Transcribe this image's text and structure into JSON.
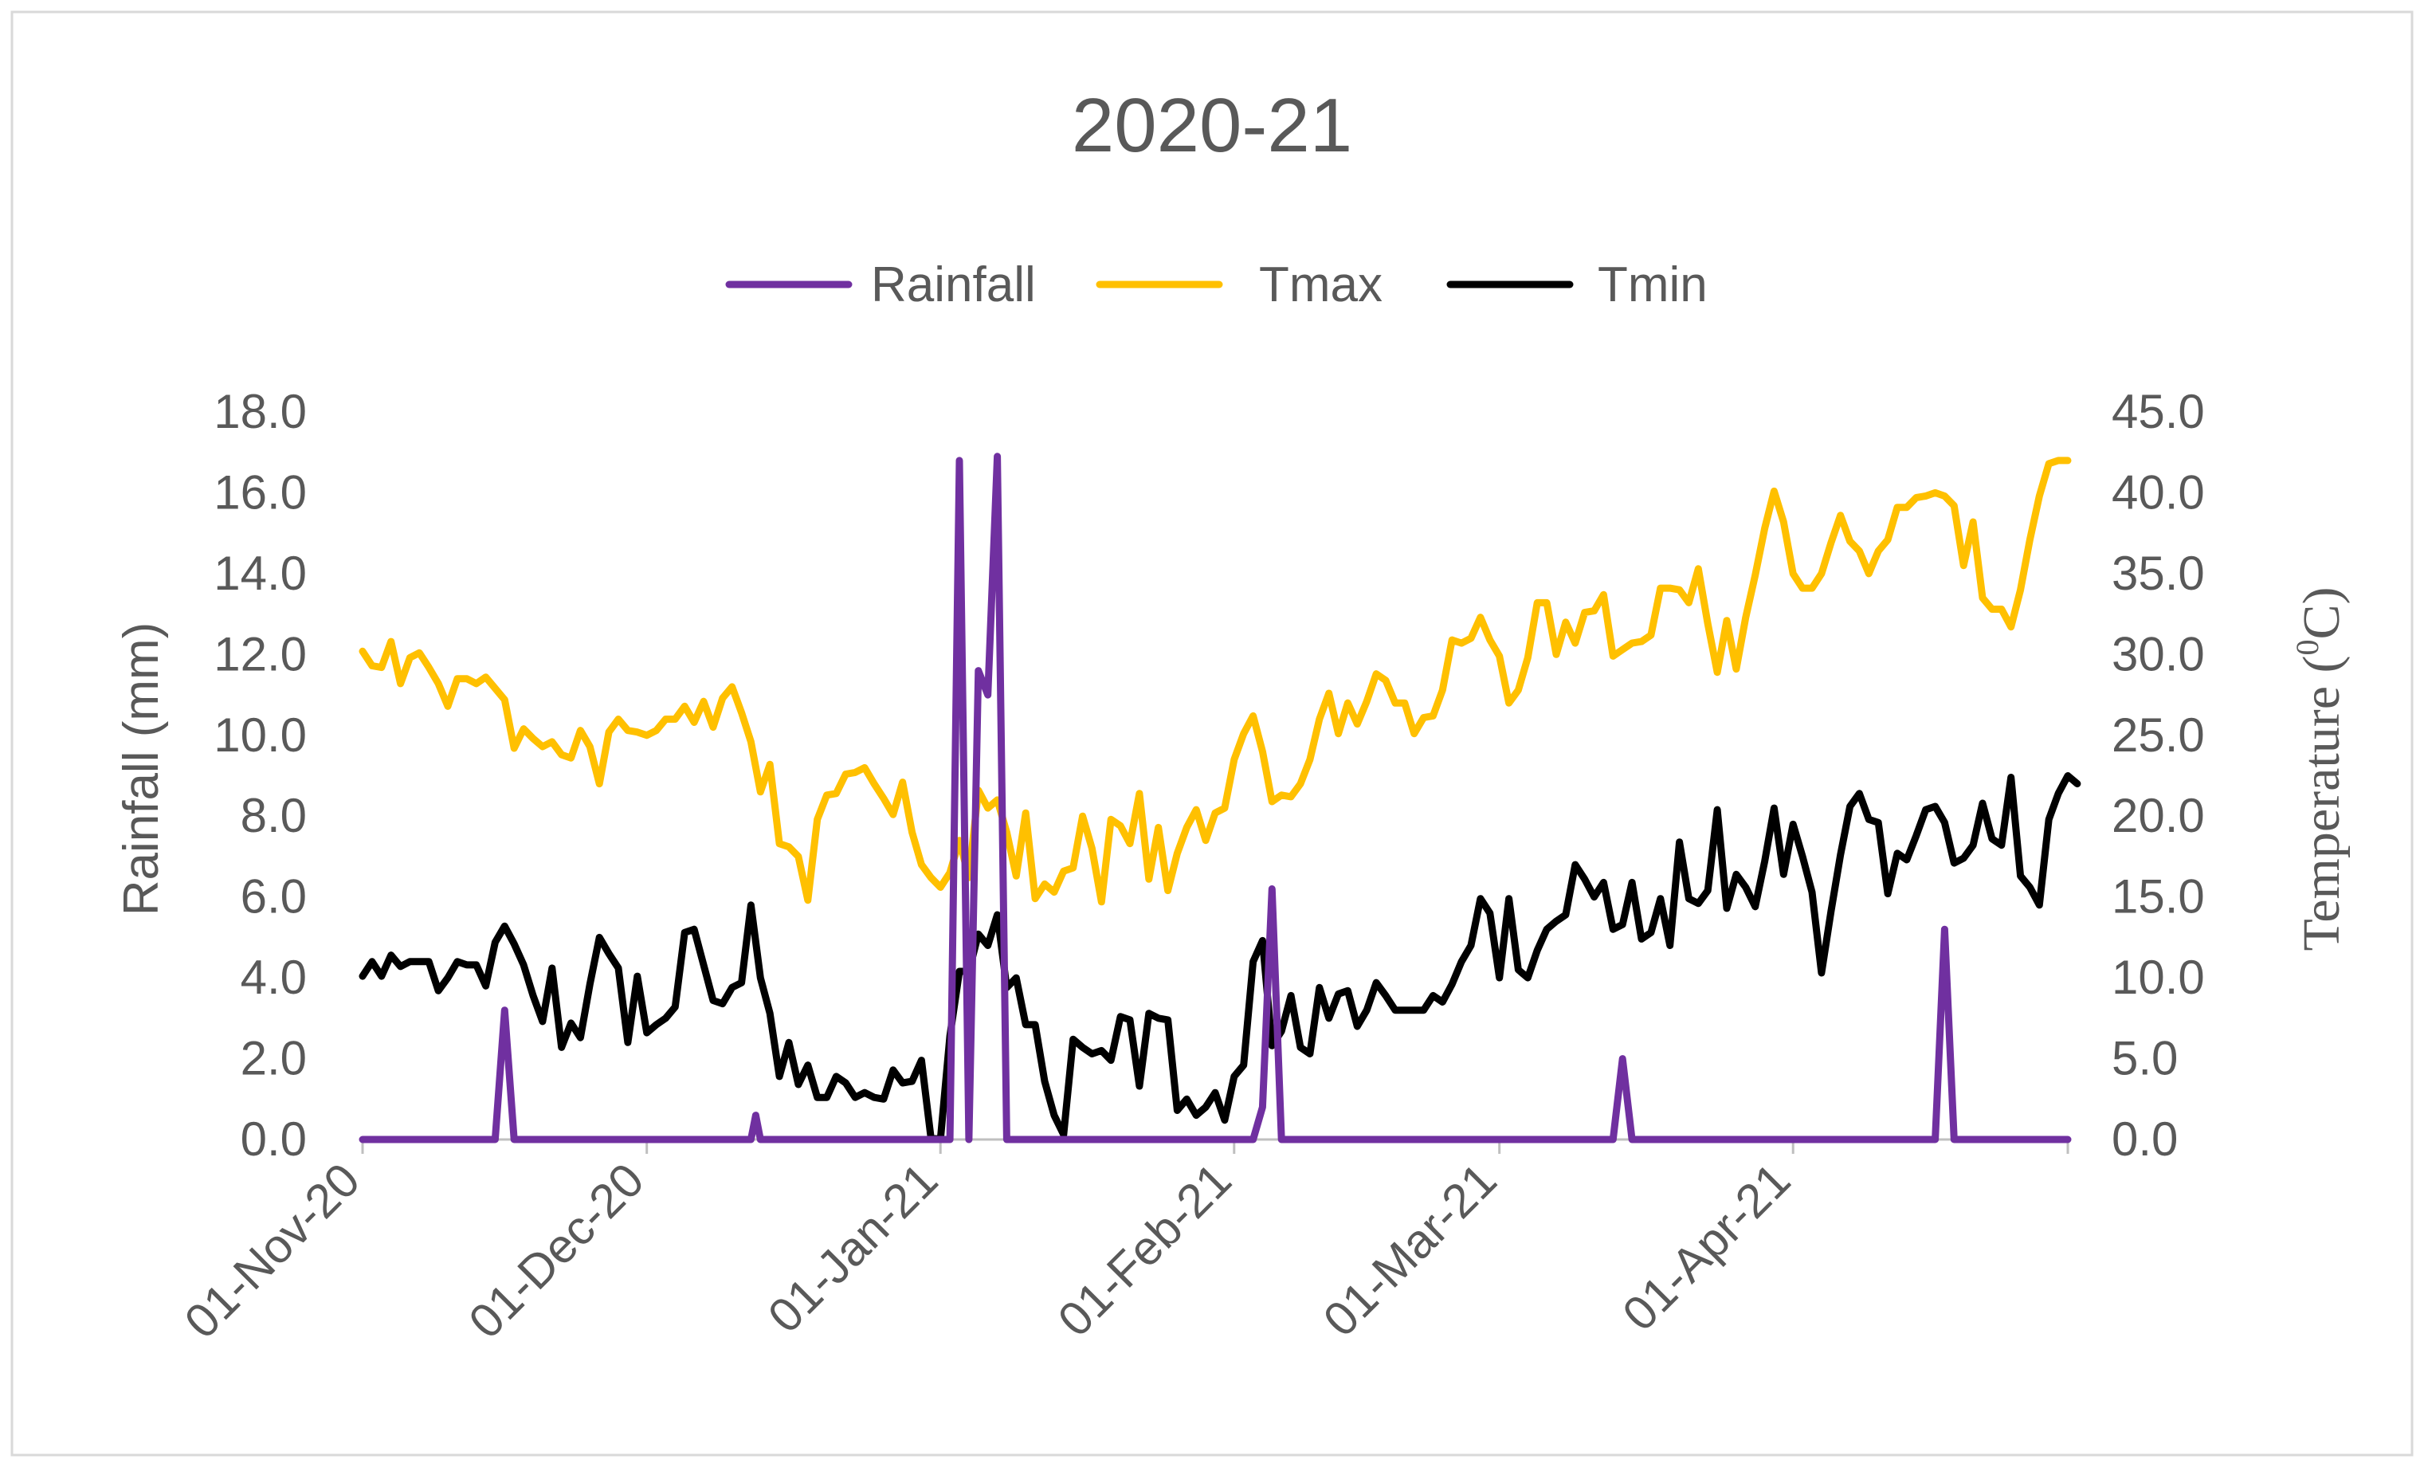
{
  "chart_data": {
    "type": "line",
    "title": "2020-21",
    "ylabel": "Rainfall (mm)",
    "y2label_prefix": "Temperature (",
    "y2label_sup": "0",
    "y2label_suffix": "C)",
    "ylim": [
      0,
      18
    ],
    "y2lim": [
      0,
      45
    ],
    "yticks": [
      "0.0",
      "2.0",
      "4.0",
      "6.0",
      "8.0",
      "10.0",
      "12.0",
      "14.0",
      "16.0",
      "18.0"
    ],
    "y2ticks": [
      "0.0",
      "5.0",
      "10.0",
      "15.0",
      "20.0",
      "25.0",
      "30.0",
      "35.0",
      "40.0",
      "45.0"
    ],
    "x_range_days": [
      0,
      180
    ],
    "x_ticks": [
      {
        "day": 0,
        "label": "01-Nov-20"
      },
      {
        "day": 30,
        "label": "01-Dec-20"
      },
      {
        "day": 61,
        "label": "01-Jan-21"
      },
      {
        "day": 92,
        "label": "01-Feb-21"
      },
      {
        "day": 120,
        "label": "01-Mar-21"
      },
      {
        "day": 151,
        "label": "01-Apr-21"
      }
    ],
    "legend_position": "top",
    "colors": {
      "Rainfall": "#7030a0",
      "Tmax": "#ffc000",
      "Tmin": "#000000",
      "grid_axis": "#bfbfbf",
      "text": "#595959"
    },
    "series": [
      {
        "name": "Rainfall",
        "axis": "left",
        "color": "#7030a0",
        "points": [
          [
            0,
            0
          ],
          [
            14,
            0
          ],
          [
            15,
            3.2
          ],
          [
            16,
            0
          ],
          [
            41,
            0
          ],
          [
            41.5,
            0.6
          ],
          [
            42,
            0
          ],
          [
            61,
            0
          ],
          [
            62,
            0
          ],
          [
            63,
            16.8
          ],
          [
            64,
            0
          ],
          [
            65,
            11.6
          ],
          [
            66,
            11
          ],
          [
            67,
            16.9
          ],
          [
            68,
            0
          ],
          [
            94,
            0
          ],
          [
            95,
            0.8
          ],
          [
            96,
            6.2
          ],
          [
            97,
            0
          ],
          [
            132,
            0
          ],
          [
            133,
            2.0
          ],
          [
            134,
            0
          ],
          [
            166,
            0
          ],
          [
            167,
            5.2
          ],
          [
            168,
            0
          ],
          [
            180,
            0
          ]
        ]
      },
      {
        "name": "Tmax",
        "axis": "right",
        "color": "#ffc000",
        "values": [
          30.2,
          29.3,
          29.2,
          30.8,
          28.2,
          29.8,
          30.1,
          29.2,
          28.2,
          26.8,
          28.5,
          28.5,
          28.2,
          28.6,
          27.9,
          27.2,
          24.2,
          25.4,
          24.8,
          24.3,
          24.6,
          23.8,
          23.6,
          25.3,
          24.3,
          22,
          25.2,
          26,
          25.3,
          25.2,
          25,
          25.3,
          26,
          26,
          26.8,
          25.8,
          27.1,
          25.5,
          27.3,
          28,
          26.4,
          24.6,
          21.5,
          23.2,
          18.3,
          18.1,
          17.5,
          14.8,
          19.8,
          21.3,
          21.4,
          22.6,
          22.7,
          23,
          22,
          21.1,
          20.1,
          22.1,
          19,
          17,
          16.2,
          15.6,
          16.5,
          18.5,
          16.2,
          21.6,
          20.5,
          21,
          19,
          16.3,
          20.2,
          14.9,
          15.8,
          15.3,
          16.6,
          16.8,
          20,
          18,
          14.7,
          19.8,
          19.4,
          18.3,
          21.4,
          16.1,
          19.3,
          15.4,
          17.7,
          19.3,
          20.4,
          18.5,
          20.2,
          20.5,
          23.5,
          25.1,
          26.2,
          24,
          20.9,
          21.3,
          21.2,
          22,
          23.5,
          26,
          27.6,
          25.1,
          27,
          25.7,
          27.1,
          28.8,
          28.4,
          27,
          27,
          25.1,
          26.1,
          26.2,
          27.8,
          30.9,
          30.7,
          31,
          32.3,
          30.9,
          29.9,
          27,
          27.8,
          29.8,
          33.2,
          33.2,
          30,
          32,
          30.7,
          32.6,
          32.7,
          33.7,
          29.9,
          30.3,
          30.7,
          30.8,
          31.2,
          34.1,
          34.1,
          34,
          33.2,
          35.3,
          31.9,
          28.9,
          32.1,
          29.1,
          32.3,
          34.9,
          37.8,
          40.1,
          38.2,
          35,
          34.1,
          34.1,
          35,
          36.9,
          38.6,
          37,
          36.4,
          35,
          36.4,
          37.1,
          39.1,
          39.1,
          39.7,
          39.8,
          40,
          39.8,
          39.2,
          35.5,
          38.2,
          33.5,
          32.8,
          32.8,
          31.7,
          34,
          37.1,
          39.8,
          41.8,
          42,
          42
        ]
      },
      {
        "name": "Tmin",
        "axis": "right",
        "color": "#000000",
        "values": [
          10.1,
          11,
          10.1,
          11.4,
          10.7,
          11,
          11,
          11,
          9.2,
          10,
          11,
          10.8,
          10.8,
          9.5,
          12.2,
          13.2,
          12.1,
          10.8,
          8.9,
          7.3,
          10.6,
          5.7,
          7.2,
          6.3,
          9.6,
          12.5,
          11.5,
          10.6,
          6,
          10.1,
          6.6,
          7.1,
          7.5,
          8.2,
          12.8,
          13,
          10.8,
          8.6,
          8.4,
          9.4,
          9.7,
          14.5,
          10,
          7.8,
          3.9,
          6,
          3.4,
          4.6,
          2.6,
          2.6,
          3.9,
          3.5,
          2.6,
          2.9,
          2.6,
          2.5,
          4.3,
          3.5,
          3.6,
          4.9,
          0.1,
          0,
          6.4,
          10.4,
          10.4,
          12.7,
          12,
          13.9,
          9.4,
          10,
          7.1,
          7.1,
          3.6,
          1.5,
          0.3,
          6.2,
          5.7,
          5.3,
          5.5,
          4.9,
          7.6,
          7.4,
          3.3,
          7.8,
          7.5,
          7.4,
          1.8,
          2.5,
          1.5,
          2,
          2.9,
          1.2,
          3.9,
          4.6,
          11,
          12.3,
          5.8,
          6.7,
          8.9,
          5.7,
          5.3,
          9.4,
          7.5,
          9,
          9.2,
          7,
          8,
          9.7,
          8.9,
          8,
          8,
          8,
          8,
          8.9,
          8.5,
          9.6,
          11,
          12,
          14.9,
          14,
          10,
          14.9,
          10.5,
          10,
          11.7,
          13,
          13.5,
          13.9,
          17,
          16.1,
          15,
          15.9,
          13,
          13.3,
          15.9,
          12.4,
          12.8,
          14.9,
          12,
          18.4,
          14.9,
          14.6,
          15.4,
          20.4,
          14.3,
          16.4,
          15.6,
          14.4,
          17.2,
          20.5,
          16.4,
          19.5,
          17.5,
          15.3,
          10.3,
          14.1,
          17.6,
          20.6,
          21.4,
          19.8,
          19.6,
          15.2,
          17.7,
          17.3,
          18.8,
          20.4,
          20.6,
          19.6,
          17.1,
          17.4,
          18.2,
          20.8,
          18.6,
          18.2,
          22.4,
          16.3,
          15.6,
          14.5,
          19.8,
          21.4,
          22.5,
          22
        ]
      }
    ]
  }
}
